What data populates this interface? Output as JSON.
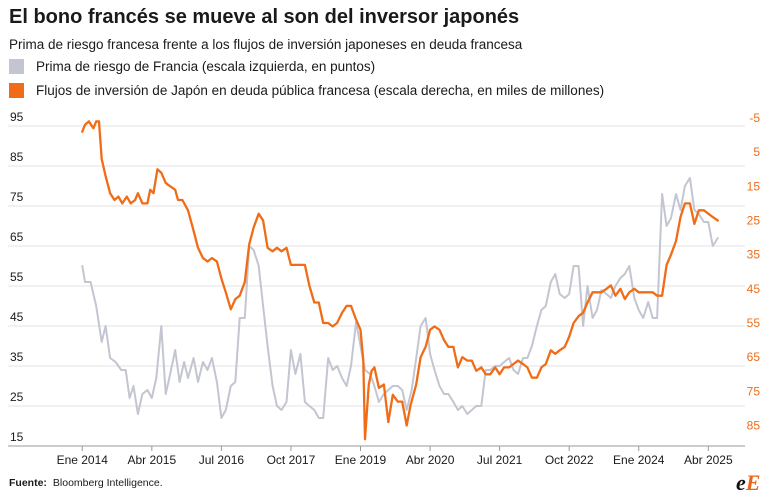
{
  "title": "El bono francés se mueve al son del inversor japonés",
  "subtitle": "Prima de riesgo francesa frente a los flujos de inversión japoneses en deuda francesa",
  "source_label": "Fuente:",
  "source_text": "Bloomberg Intelligence.",
  "logo_text": {
    "first": "e",
    "second": "E"
  },
  "colors": {
    "spread": "#c3c6d1",
    "flows": "#f06c17",
    "grid": "#e3e3e3",
    "text": "#1a1a1a"
  },
  "chart_data": {
    "type": "line",
    "x_unit": "years",
    "x_ticks": [
      {
        "x": 2014.0,
        "label": "Ene 2014"
      },
      {
        "x": 2015.25,
        "label": "Abr 2015"
      },
      {
        "x": 2016.5,
        "label": "Jul 2016"
      },
      {
        "x": 2017.75,
        "label": "Oct 2017"
      },
      {
        "x": 2019.0,
        "label": "Ene 2019"
      },
      {
        "x": 2020.25,
        "label": "Abr 2020"
      },
      {
        "x": 2021.5,
        "label": "Jul 2021"
      },
      {
        "x": 2022.75,
        "label": "Oct 2022"
      },
      {
        "x": 2024.0,
        "label": "Ene 2024"
      },
      {
        "x": 2025.25,
        "label": "Abr 2025"
      }
    ],
    "xlim": [
      2013.6,
      2025.55
    ],
    "y_left": {
      "ticks": [
        95,
        85,
        75,
        65,
        55,
        45,
        35,
        25,
        15
      ],
      "lim": [
        15,
        97
      ]
    },
    "y_right": {
      "ticks": [
        -5,
        5,
        15,
        25,
        35,
        45,
        55,
        65,
        75,
        85
      ],
      "lim": [
        -5,
        91
      ]
    },
    "grid": true,
    "series": [
      {
        "name": "Prima de riesgo de Francia (escala izquierda, en puntos)",
        "axis": "left",
        "color": "#c3c6d1",
        "points": [
          [
            2014.0,
            60
          ],
          [
            2014.05,
            56
          ],
          [
            2014.15,
            56
          ],
          [
            2014.25,
            50
          ],
          [
            2014.35,
            41
          ],
          [
            2014.42,
            45
          ],
          [
            2014.5,
            37
          ],
          [
            2014.6,
            36
          ],
          [
            2014.7,
            34
          ],
          [
            2014.78,
            34
          ],
          [
            2014.85,
            27
          ],
          [
            2014.92,
            30
          ],
          [
            2015.0,
            23
          ],
          [
            2015.08,
            28
          ],
          [
            2015.17,
            29
          ],
          [
            2015.25,
            27
          ],
          [
            2015.33,
            32
          ],
          [
            2015.42,
            45
          ],
          [
            2015.5,
            28
          ],
          [
            2015.58,
            33
          ],
          [
            2015.67,
            39
          ],
          [
            2015.75,
            31
          ],
          [
            2015.83,
            36
          ],
          [
            2015.9,
            32
          ],
          [
            2016.0,
            37
          ],
          [
            2016.08,
            31
          ],
          [
            2016.17,
            36
          ],
          [
            2016.25,
            34
          ],
          [
            2016.33,
            37
          ],
          [
            2016.42,
            31
          ],
          [
            2016.5,
            22
          ],
          [
            2016.58,
            24
          ],
          [
            2016.67,
            30
          ],
          [
            2016.75,
            31
          ],
          [
            2016.83,
            47
          ],
          [
            2016.92,
            47
          ],
          [
            2017.0,
            65
          ],
          [
            2017.08,
            64
          ],
          [
            2017.17,
            60
          ],
          [
            2017.25,
            50
          ],
          [
            2017.33,
            40
          ],
          [
            2017.42,
            30
          ],
          [
            2017.5,
            25
          ],
          [
            2017.58,
            24
          ],
          [
            2017.67,
            26
          ],
          [
            2017.75,
            39
          ],
          [
            2017.83,
            33
          ],
          [
            2017.92,
            38
          ],
          [
            2018.0,
            26
          ],
          [
            2018.08,
            25
          ],
          [
            2018.17,
            24
          ],
          [
            2018.25,
            22
          ],
          [
            2018.33,
            22
          ],
          [
            2018.42,
            37
          ],
          [
            2018.5,
            34
          ],
          [
            2018.58,
            35
          ],
          [
            2018.67,
            32
          ],
          [
            2018.75,
            30
          ],
          [
            2018.83,
            35
          ],
          [
            2018.92,
            46
          ],
          [
            2019.0,
            40
          ],
          [
            2019.08,
            34
          ],
          [
            2019.17,
            33
          ],
          [
            2019.25,
            30
          ],
          [
            2019.33,
            26
          ],
          [
            2019.42,
            28
          ],
          [
            2019.5,
            29
          ],
          [
            2019.58,
            30
          ],
          [
            2019.67,
            30
          ],
          [
            2019.75,
            29
          ],
          [
            2019.83,
            24
          ],
          [
            2019.92,
            29
          ],
          [
            2020.0,
            37
          ],
          [
            2020.08,
            45
          ],
          [
            2020.17,
            47
          ],
          [
            2020.25,
            38
          ],
          [
            2020.33,
            34
          ],
          [
            2020.42,
            30
          ],
          [
            2020.5,
            28
          ],
          [
            2020.58,
            28
          ],
          [
            2020.67,
            26
          ],
          [
            2020.75,
            24
          ],
          [
            2020.83,
            25
          ],
          [
            2020.92,
            23
          ],
          [
            2021.0,
            24
          ],
          [
            2021.08,
            25
          ],
          [
            2021.17,
            25
          ],
          [
            2021.25,
            34
          ],
          [
            2021.33,
            34
          ],
          [
            2021.42,
            35
          ],
          [
            2021.5,
            35
          ],
          [
            2021.58,
            36
          ],
          [
            2021.67,
            37
          ],
          [
            2021.75,
            34
          ],
          [
            2021.83,
            33
          ],
          [
            2021.92,
            37
          ],
          [
            2022.0,
            37
          ],
          [
            2022.08,
            40
          ],
          [
            2022.17,
            45
          ],
          [
            2022.25,
            49
          ],
          [
            2022.33,
            50
          ],
          [
            2022.42,
            56
          ],
          [
            2022.5,
            58
          ],
          [
            2022.58,
            53
          ],
          [
            2022.67,
            52
          ],
          [
            2022.75,
            53
          ],
          [
            2022.83,
            60
          ],
          [
            2022.92,
            60
          ],
          [
            2023.0,
            45
          ],
          [
            2023.08,
            55
          ],
          [
            2023.17,
            47
          ],
          [
            2023.25,
            49
          ],
          [
            2023.33,
            54
          ],
          [
            2023.42,
            53
          ],
          [
            2023.5,
            52
          ],
          [
            2023.58,
            55
          ],
          [
            2023.67,
            57
          ],
          [
            2023.75,
            58
          ],
          [
            2023.83,
            60
          ],
          [
            2023.92,
            52
          ],
          [
            2024.0,
            49
          ],
          [
            2024.08,
            47
          ],
          [
            2024.17,
            51
          ],
          [
            2024.25,
            47
          ],
          [
            2024.33,
            47
          ],
          [
            2024.42,
            78
          ],
          [
            2024.5,
            70
          ],
          [
            2024.58,
            72
          ],
          [
            2024.67,
            78
          ],
          [
            2024.75,
            74
          ],
          [
            2024.83,
            80
          ],
          [
            2024.92,
            82
          ],
          [
            2025.0,
            74
          ],
          [
            2025.08,
            73
          ],
          [
            2025.17,
            71
          ],
          [
            2025.25,
            71
          ],
          [
            2025.33,
            65
          ],
          [
            2025.42,
            67
          ]
        ]
      },
      {
        "name": "Flujos de inversión de Japón en deuda pública francesa (escala derecha, en miles de millones)",
        "axis": "right",
        "color": "#f06c17",
        "points": [
          [
            2014.0,
            -1
          ],
          [
            2014.05,
            -3
          ],
          [
            2014.12,
            -4
          ],
          [
            2014.2,
            -2
          ],
          [
            2014.25,
            -4
          ],
          [
            2014.3,
            -4
          ],
          [
            2014.35,
            7
          ],
          [
            2014.42,
            12
          ],
          [
            2014.5,
            17
          ],
          [
            2014.58,
            19
          ],
          [
            2014.65,
            18
          ],
          [
            2014.72,
            20
          ],
          [
            2014.8,
            18
          ],
          [
            2014.87,
            20
          ],
          [
            2014.95,
            19
          ],
          [
            2015.0,
            17
          ],
          [
            2015.08,
            20
          ],
          [
            2015.17,
            20
          ],
          [
            2015.22,
            16
          ],
          [
            2015.28,
            17
          ],
          [
            2015.35,
            10
          ],
          [
            2015.42,
            11
          ],
          [
            2015.5,
            14
          ],
          [
            2015.58,
            15
          ],
          [
            2015.67,
            16
          ],
          [
            2015.72,
            19
          ],
          [
            2015.8,
            19
          ],
          [
            2015.9,
            22
          ],
          [
            2016.0,
            28
          ],
          [
            2016.08,
            33
          ],
          [
            2016.17,
            36
          ],
          [
            2016.25,
            37
          ],
          [
            2016.33,
            36
          ],
          [
            2016.42,
            37
          ],
          [
            2016.5,
            42
          ],
          [
            2016.58,
            46
          ],
          [
            2016.67,
            51
          ],
          [
            2016.75,
            48
          ],
          [
            2016.83,
            47
          ],
          [
            2016.92,
            43
          ],
          [
            2017.0,
            32
          ],
          [
            2017.08,
            27
          ],
          [
            2017.17,
            23
          ],
          [
            2017.25,
            25
          ],
          [
            2017.33,
            33
          ],
          [
            2017.42,
            34
          ],
          [
            2017.5,
            33
          ],
          [
            2017.58,
            34
          ],
          [
            2017.67,
            33
          ],
          [
            2017.75,
            38
          ],
          [
            2017.83,
            38
          ],
          [
            2017.92,
            38
          ],
          [
            2018.0,
            38
          ],
          [
            2018.08,
            44
          ],
          [
            2018.17,
            49
          ],
          [
            2018.25,
            49
          ],
          [
            2018.33,
            55
          ],
          [
            2018.42,
            55
          ],
          [
            2018.5,
            56
          ],
          [
            2018.58,
            55
          ],
          [
            2018.67,
            52
          ],
          [
            2018.75,
            50
          ],
          [
            2018.83,
            50
          ],
          [
            2018.92,
            54
          ],
          [
            2019.0,
            57
          ],
          [
            2019.05,
            66
          ],
          [
            2019.08,
            89
          ],
          [
            2019.15,
            73
          ],
          [
            2019.2,
            69
          ],
          [
            2019.25,
            68
          ],
          [
            2019.33,
            74
          ],
          [
            2019.42,
            73
          ],
          [
            2019.5,
            84
          ],
          [
            2019.58,
            76
          ],
          [
            2019.67,
            78
          ],
          [
            2019.75,
            78
          ],
          [
            2019.83,
            85
          ],
          [
            2019.9,
            79
          ],
          [
            2020.0,
            73
          ],
          [
            2020.08,
            65
          ],
          [
            2020.17,
            62
          ],
          [
            2020.25,
            57
          ],
          [
            2020.33,
            56
          ],
          [
            2020.42,
            57
          ],
          [
            2020.5,
            60
          ],
          [
            2020.58,
            62
          ],
          [
            2020.67,
            62
          ],
          [
            2020.75,
            68
          ],
          [
            2020.83,
            65
          ],
          [
            2020.92,
            66
          ],
          [
            2021.0,
            66
          ],
          [
            2021.08,
            69
          ],
          [
            2021.17,
            68
          ],
          [
            2021.25,
            70
          ],
          [
            2021.33,
            70
          ],
          [
            2021.42,
            68
          ],
          [
            2021.5,
            70
          ],
          [
            2021.58,
            68
          ],
          [
            2021.67,
            68
          ],
          [
            2021.75,
            67
          ],
          [
            2021.83,
            66
          ],
          [
            2021.92,
            67
          ],
          [
            2022.0,
            68
          ],
          [
            2022.08,
            71
          ],
          [
            2022.17,
            71
          ],
          [
            2022.25,
            68
          ],
          [
            2022.33,
            67
          ],
          [
            2022.42,
            63
          ],
          [
            2022.5,
            64
          ],
          [
            2022.58,
            63
          ],
          [
            2022.67,
            62
          ],
          [
            2022.75,
            59
          ],
          [
            2022.83,
            55
          ],
          [
            2022.92,
            53
          ],
          [
            2023.0,
            52
          ],
          [
            2023.08,
            49
          ],
          [
            2023.17,
            46
          ],
          [
            2023.25,
            46
          ],
          [
            2023.33,
            46
          ],
          [
            2023.42,
            45
          ],
          [
            2023.5,
            44
          ],
          [
            2023.58,
            47
          ],
          [
            2023.67,
            45
          ],
          [
            2023.75,
            48
          ],
          [
            2023.83,
            46
          ],
          [
            2023.92,
            45
          ],
          [
            2024.0,
            46
          ],
          [
            2024.08,
            46
          ],
          [
            2024.17,
            46
          ],
          [
            2024.25,
            46
          ],
          [
            2024.33,
            47
          ],
          [
            2024.42,
            47
          ],
          [
            2024.5,
            38
          ],
          [
            2024.58,
            35
          ],
          [
            2024.67,
            31
          ],
          [
            2024.75,
            24
          ],
          [
            2024.83,
            20
          ],
          [
            2024.92,
            20
          ],
          [
            2025.0,
            26
          ],
          [
            2025.08,
            22
          ],
          [
            2025.17,
            22
          ],
          [
            2025.25,
            23
          ],
          [
            2025.33,
            24
          ],
          [
            2025.42,
            25
          ]
        ]
      }
    ]
  }
}
